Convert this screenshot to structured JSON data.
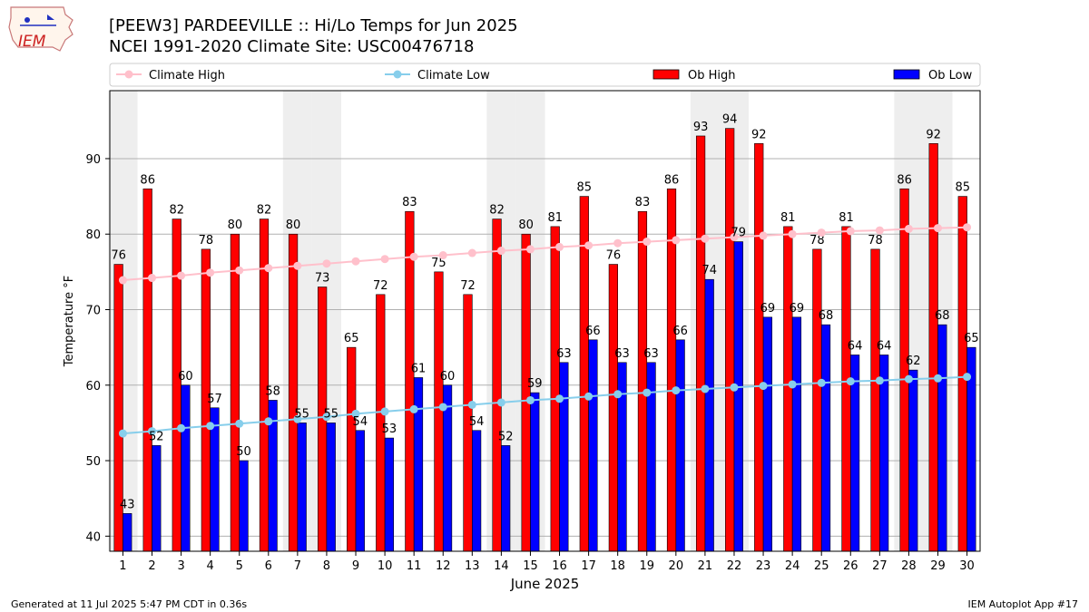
{
  "header": {
    "title": "[PEEW3] PARDEEVILLE :: Hi/Lo Temps for Jun 2025",
    "subtitle": "NCEI 1991-2020 Climate Site: USC00476718",
    "logo_text": "IEM"
  },
  "footer": {
    "generated": "Generated at 11 Jul 2025 5:47 PM CDT in 0.36s",
    "app": "IEM Autoplot App #17"
  },
  "colors": {
    "ob_high": "#ff0000",
    "ob_low": "#0000ff",
    "climate_high": "#ffc0cb",
    "climate_low": "#87ceeb",
    "weekend_shade": "#eeeeee",
    "grid": "#b0b0b0"
  },
  "chart_data": {
    "type": "bar",
    "xlabel": "June 2025",
    "ylabel": "Temperature °F",
    "ylim": [
      38,
      99
    ],
    "yticks": [
      40,
      50,
      60,
      70,
      80,
      90
    ],
    "grid": "horizontal",
    "legend_placement": "top, above plot",
    "categories": [
      "1",
      "2",
      "3",
      "4",
      "5",
      "6",
      "7",
      "8",
      "9",
      "10",
      "11",
      "12",
      "13",
      "14",
      "15",
      "16",
      "17",
      "18",
      "19",
      "20",
      "21",
      "22",
      "23",
      "24",
      "25",
      "26",
      "27",
      "28",
      "29",
      "30"
    ],
    "shaded_weekend_days": [
      1,
      7,
      8,
      14,
      15,
      21,
      22,
      28,
      29
    ],
    "series": [
      {
        "name": "Ob High",
        "type": "bar",
        "values": [
          76,
          86,
          82,
          78,
          80,
          82,
          80,
          73,
          65,
          72,
          83,
          75,
          72,
          82,
          80,
          81,
          85,
          76,
          83,
          86,
          93,
          94,
          92,
          81,
          78,
          81,
          78,
          86,
          92,
          85
        ]
      },
      {
        "name": "Ob Low",
        "type": "bar",
        "values": [
          43,
          52,
          60,
          57,
          50,
          58,
          55,
          55,
          54,
          53,
          61,
          60,
          54,
          52,
          59,
          63,
          66,
          63,
          63,
          66,
          74,
          79,
          69,
          69,
          68,
          64,
          64,
          62,
          68,
          65
        ]
      },
      {
        "name": "Climate High",
        "type": "line",
        "values": [
          73.9,
          74.2,
          74.5,
          74.9,
          75.2,
          75.5,
          75.8,
          76.1,
          76.4,
          76.7,
          77.0,
          77.2,
          77.5,
          77.8,
          78.0,
          78.3,
          78.5,
          78.8,
          79.0,
          79.2,
          79.4,
          79.6,
          79.8,
          80.0,
          80.2,
          80.4,
          80.5,
          80.7,
          80.8,
          80.9
        ]
      },
      {
        "name": "Climate Low",
        "type": "line",
        "values": [
          53.6,
          53.9,
          54.3,
          54.6,
          54.9,
          55.2,
          55.5,
          55.8,
          56.2,
          56.5,
          56.8,
          57.1,
          57.4,
          57.7,
          58.0,
          58.2,
          58.5,
          58.8,
          59.0,
          59.3,
          59.5,
          59.7,
          59.9,
          60.1,
          60.3,
          60.5,
          60.6,
          60.8,
          60.9,
          61.1
        ]
      }
    ]
  }
}
